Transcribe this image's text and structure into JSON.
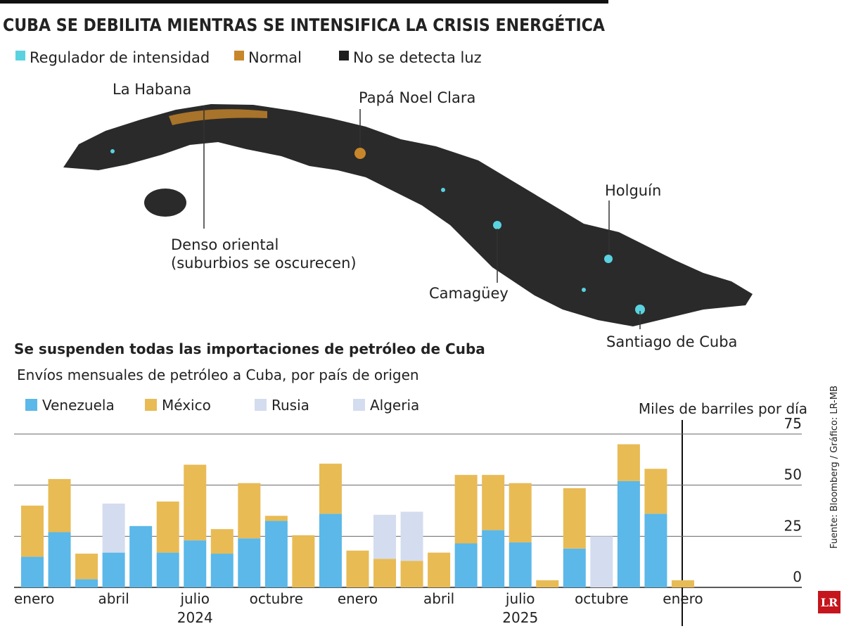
{
  "title": "CUBA SE DEBILITA MIENTRAS SE INTENSIFICA LA CRISIS ENERGÉTICA",
  "map": {
    "legend": [
      {
        "label": "Regulador de intensidad",
        "color": "#5ad2e0"
      },
      {
        "label": "Normal",
        "color": "#c8862a"
      },
      {
        "label": "No se detecta luz",
        "color": "#1e1e1e"
      }
    ],
    "labels": [
      "La Habana",
      "Papá Noel Clara",
      "Holguín",
      "Denso oriental",
      "(suburbios se oscurecen)",
      "Camagüey",
      "Santiago de Cuba"
    ]
  },
  "chart_data": {
    "type": "bar",
    "stacked": true,
    "title": "Se suspenden todas las importaciones de petróleo de Cuba",
    "subtitle": "Envíos mensuales de petróleo a Cuba, por país de origen",
    "y_label": "Miles de barriles por día",
    "categories": [
      "enero",
      null,
      null,
      "abril",
      null,
      null,
      "julio",
      null,
      null,
      "octubre",
      null,
      null,
      "enero",
      null,
      null,
      "abril",
      null,
      null,
      "julio",
      null,
      null,
      "octubre",
      null,
      null,
      "enero"
    ],
    "x_sublabels": [
      null,
      null,
      null,
      null,
      null,
      null,
      "2024",
      null,
      null,
      null,
      null,
      null,
      null,
      null,
      null,
      null,
      null,
      null,
      "2025",
      null,
      null,
      null,
      null,
      null,
      null
    ],
    "series": [
      {
        "name": "Venezuela",
        "color": "#5bb8e8",
        "values": [
          15,
          27,
          4,
          17,
          30,
          17,
          23,
          16.5,
          24,
          32.5,
          0,
          36,
          0,
          0,
          0,
          0,
          21.5,
          28,
          22,
          0,
          19,
          0,
          52,
          36,
          0
        ]
      },
      {
        "name": "México",
        "color": "#e8bb55",
        "values": [
          25,
          26,
          12.5,
          0,
          0,
          25,
          37,
          12,
          27,
          2.5,
          25.5,
          24.5,
          18,
          14,
          13,
          17,
          33.5,
          27,
          29,
          3.5,
          29.5,
          0,
          18,
          22,
          3.5
        ]
      },
      {
        "name": "Rusia",
        "color": "#d4dcef",
        "values": [
          0,
          0,
          0,
          24,
          0,
          0,
          0,
          0,
          0,
          0,
          0,
          0,
          0,
          21.5,
          24,
          0,
          0,
          0,
          0,
          0,
          0,
          0,
          0,
          0,
          0
        ]
      },
      {
        "name": "Algeria",
        "color": "#d4dcef",
        "values": [
          0,
          0,
          0,
          0,
          0,
          0,
          0,
          0,
          0,
          0,
          0,
          0,
          0,
          0,
          0,
          0,
          0,
          0,
          0,
          0,
          0,
          25,
          0,
          0,
          0
        ]
      }
    ],
    "ylim": [
      0,
      75
    ],
    "yticks": [
      0,
      25,
      50,
      75
    ],
    "grid": true
  },
  "source": "Fuente: Bloomberg / Gráfico: LR-MB",
  "logo": "LR"
}
